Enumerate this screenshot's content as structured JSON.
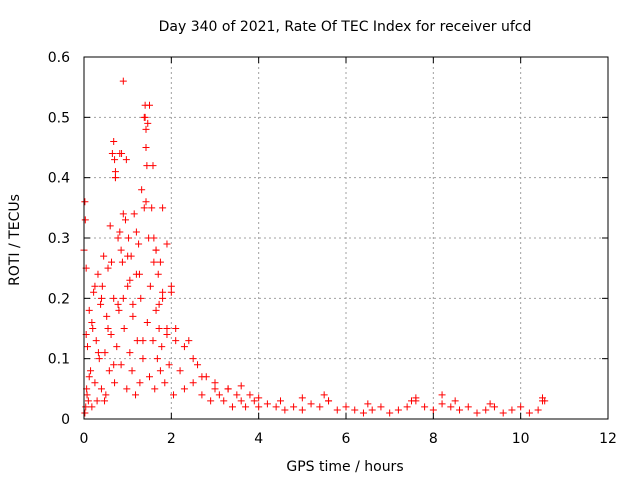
{
  "chart_data": {
    "type": "scatter",
    "title": "Day 340 of 2021, Rate Of TEC Index for receiver ufcd",
    "xlabel": "GPS time / hours",
    "ylabel": "ROTI / TECUs",
    "xlim": [
      0,
      12
    ],
    "ylim": [
      0,
      0.6
    ],
    "xticks": [
      0,
      2,
      4,
      6,
      8,
      10,
      12
    ],
    "yticks": [
      0,
      0.1,
      0.2,
      0.3,
      0.4,
      0.5,
      0.6
    ],
    "xtick_labels": [
      "0",
      "2",
      "4",
      "6",
      "8",
      "10",
      "12"
    ],
    "ytick_labels": [
      "0",
      "0.1",
      "0.2",
      "0.3",
      "0.4",
      "0.5",
      "0.6"
    ],
    "grid": true,
    "marker": "+",
    "color": "#ff0000",
    "series": [
      {
        "name": "ROTI",
        "x": [
          0.0,
          0.02,
          0.03,
          0.05,
          0.05,
          0.06,
          0.08,
          0.1,
          0.12,
          0.15,
          0.18,
          0.2,
          0.22,
          0.25,
          0.28,
          0.3,
          0.32,
          0.35,
          0.38,
          0.4,
          0.42,
          0.45,
          0.48,
          0.5,
          0.52,
          0.55,
          0.58,
          0.6,
          0.62,
          0.65,
          0.68,
          0.7,
          0.72,
          0.75,
          0.78,
          0.8,
          0.82,
          0.85,
          0.88,
          0.9,
          0.92,
          0.95,
          0.98,
          1.0,
          1.02,
          1.05,
          1.08,
          1.1,
          1.12,
          1.15,
          1.18,
          1.2,
          1.22,
          1.25,
          1.28,
          1.3,
          1.32,
          1.35,
          1.38,
          1.4,
          1.42,
          1.45,
          1.48,
          1.5,
          1.52,
          1.55,
          1.58,
          1.6,
          1.62,
          1.65,
          1.68,
          1.7,
          1.72,
          1.75,
          1.78,
          1.8,
          1.85,
          1.9,
          1.95,
          2.0,
          2.05,
          2.1,
          2.2,
          2.3,
          2.4,
          2.5,
          2.6,
          2.7,
          2.8,
          2.9,
          3.0,
          3.1,
          3.2,
          3.3,
          3.4,
          3.5,
          3.6,
          3.7,
          3.8,
          3.9,
          4.0,
          4.2,
          4.4,
          4.6,
          4.8,
          5.0,
          5.2,
          5.4,
          5.6,
          5.8,
          6.0,
          6.2,
          6.4,
          6.6,
          6.8,
          7.0,
          7.2,
          7.4,
          7.6,
          7.8,
          8.0,
          8.2,
          8.4,
          8.6,
          8.8,
          9.0,
          9.2,
          9.4,
          9.6,
          9.8,
          10.0,
          10.2,
          10.4,
          10.5,
          0.02,
          0.04,
          0.07,
          0.12,
          0.18,
          0.25,
          0.33,
          0.4,
          0.47,
          0.55,
          0.63,
          0.68,
          0.72,
          0.78,
          0.85,
          0.9,
          0.97,
          1.05,
          1.12,
          1.2,
          1.27,
          1.35,
          1.42,
          1.44,
          1.46,
          1.5,
          1.58,
          1.65,
          1.72,
          1.8,
          1.9,
          2.0,
          0.9,
          0.7,
          0.68,
          0.72,
          0.82,
          0.86,
          1.0,
          1.4,
          1.42,
          1.38,
          1.6,
          1.65,
          1.75,
          1.8,
          1.9,
          2.1,
          2.3,
          2.5,
          2.7,
          3.0,
          3.3,
          3.6,
          4.0,
          4.5,
          5.0,
          5.5,
          5.6,
          6.5,
          7.5,
          7.6,
          8.2,
          8.5,
          9.3,
          10.5,
          10.55
        ],
        "y": [
          0.28,
          0.36,
          0.33,
          0.25,
          0.14,
          0.05,
          0.12,
          0.03,
          0.18,
          0.08,
          0.02,
          0.15,
          0.21,
          0.06,
          0.13,
          0.03,
          0.24,
          0.1,
          0.19,
          0.05,
          0.22,
          0.27,
          0.11,
          0.04,
          0.17,
          0.25,
          0.08,
          0.32,
          0.14,
          0.44,
          0.2,
          0.06,
          0.41,
          0.12,
          0.3,
          0.18,
          0.44,
          0.09,
          0.26,
          0.56,
          0.15,
          0.33,
          0.05,
          0.22,
          0.3,
          0.11,
          0.27,
          0.08,
          0.19,
          0.34,
          0.04,
          0.24,
          0.13,
          0.29,
          0.06,
          0.2,
          0.38,
          0.1,
          0.5,
          0.52,
          0.45,
          0.16,
          0.3,
          0.07,
          0.22,
          0.35,
          0.13,
          0.26,
          0.05,
          0.18,
          0.1,
          0.24,
          0.15,
          0.08,
          0.12,
          0.2,
          0.06,
          0.14,
          0.09,
          0.21,
          0.04,
          0.15,
          0.08,
          0.05,
          0.13,
          0.06,
          0.09,
          0.04,
          0.07,
          0.03,
          0.05,
          0.04,
          0.03,
          0.05,
          0.02,
          0.04,
          0.03,
          0.02,
          0.04,
          0.03,
          0.02,
          0.025,
          0.02,
          0.015,
          0.02,
          0.015,
          0.025,
          0.02,
          0.03,
          0.015,
          0.02,
          0.015,
          0.01,
          0.015,
          0.02,
          0.01,
          0.015,
          0.02,
          0.03,
          0.02,
          0.015,
          0.025,
          0.02,
          0.015,
          0.02,
          0.01,
          0.015,
          0.02,
          0.01,
          0.015,
          0.02,
          0.01,
          0.015,
          0.03,
          0.01,
          0.02,
          0.04,
          0.07,
          0.16,
          0.22,
          0.11,
          0.2,
          0.03,
          0.15,
          0.26,
          0.09,
          0.4,
          0.19,
          0.28,
          0.34,
          0.43,
          0.23,
          0.17,
          0.31,
          0.24,
          0.13,
          0.36,
          0.42,
          0.49,
          0.52,
          0.42,
          0.28,
          0.19,
          0.35,
          0.29,
          0.22,
          0.2,
          0.43,
          0.46,
          0.4,
          0.31,
          0.44,
          0.27,
          0.5,
          0.48,
          0.35,
          0.3,
          0.28,
          0.26,
          0.21,
          0.15,
          0.13,
          0.12,
          0.1,
          0.07,
          0.06,
          0.05,
          0.055,
          0.035,
          0.03,
          0.035,
          0.04,
          0.03,
          0.025,
          0.03,
          0.035,
          0.04,
          0.03,
          0.025,
          0.035,
          0.03
        ]
      }
    ]
  }
}
